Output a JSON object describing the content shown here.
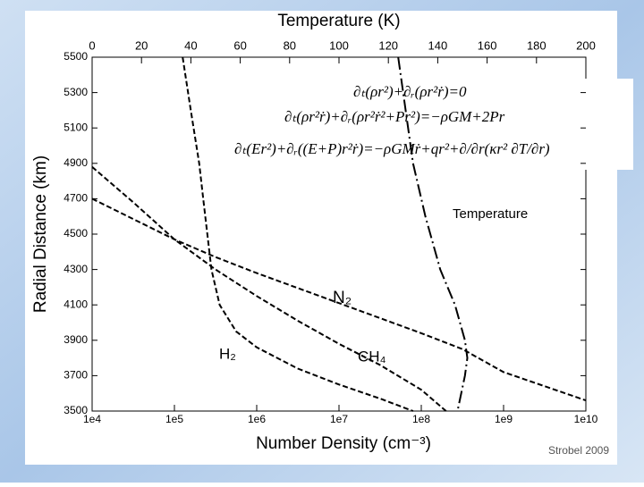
{
  "chart_data": {
    "type": "line",
    "xlabel": "Number Density (cm⁻³)",
    "x2label": "Temperature (K)",
    "ylabel": "Radial Distance (km)",
    "xlog": true,
    "xlim": [
      10000.0,
      10000000000.0
    ],
    "xticks": [
      {
        "value": 10000.0,
        "label": "1e4"
      },
      {
        "value": 100000.0,
        "label": "1e5"
      },
      {
        "value": 1000000.0,
        "label": "1e6"
      },
      {
        "value": 10000000.0,
        "label": "1e7"
      },
      {
        "value": 100000000.0,
        "label": "1e8"
      },
      {
        "value": 1000000000.0,
        "label": "1e9"
      },
      {
        "value": 10000000000.0,
        "label": "1e10"
      }
    ],
    "x2lim": [
      0,
      200
    ],
    "x2ticks": [
      0,
      20,
      40,
      60,
      80,
      100,
      120,
      140,
      160,
      180,
      200
    ],
    "ylim": [
      3500,
      5500
    ],
    "yticks": [
      3500,
      3700,
      3900,
      4100,
      4300,
      4500,
      4700,
      4900,
      5100,
      5300,
      5500
    ],
    "series": [
      {
        "name": "N₂",
        "color": "#000000",
        "x": [
          10000.0,
          100000.0,
          316000.0,
          1000000.0,
          10000000.0,
          100000000.0,
          316000000.0,
          1000000000.0,
          10000000000.0
        ],
        "values": [
          4700,
          4470,
          4370,
          4280,
          4110,
          3940,
          3850,
          3720,
          3560
        ]
      },
      {
        "name": "CH₄",
        "color": "#000000",
        "x": [
          10000.0,
          31600.0,
          100000.0,
          316000.0,
          1000000.0,
          3160000.0,
          10000000.0,
          31600000.0,
          100000000.0,
          200000000.0
        ],
        "values": [
          4880,
          4680,
          4470,
          4300,
          4150,
          4010,
          3880,
          3760,
          3620,
          3500
        ]
      },
      {
        "name": "H₂",
        "color": "#000000",
        "x": [
          126000.0,
          158000.0,
          200000.0,
          224000.0,
          251000.0,
          282000.0,
          355000.0,
          562000.0,
          1000000.0,
          3160000.0,
          10000000.0,
          31600000.0,
          79400000.0
        ],
        "values": [
          5500,
          5200,
          4900,
          4700,
          4500,
          4300,
          4100,
          3950,
          3860,
          3740,
          3650,
          3570,
          3500
        ]
      },
      {
        "name": "Temperature",
        "color": "#000000",
        "axis": "x2",
        "x": [
          124,
          127,
          130,
          135,
          141,
          147,
          151,
          152,
          151,
          148
        ],
        "values": [
          5500,
          5200,
          4900,
          4600,
          4300,
          4100,
          3900,
          3800,
          3700,
          3500
        ]
      }
    ],
    "equations": [
      "∂ₜ(ρr²)+∂ᵣ(ρr²ṙ)=0",
      "∂ₜ(ρr²ṙ)+∂ᵣ(ρr²ṙ²+Pr²)=−ρGM+2Pr",
      "∂ₜ(Er²)+∂ᵣ((E+P)r²ṙ)=−ρGMṙ+qr²+∂/∂r(κr² ∂T/∂r)"
    ],
    "source": "Strobel 2009"
  }
}
